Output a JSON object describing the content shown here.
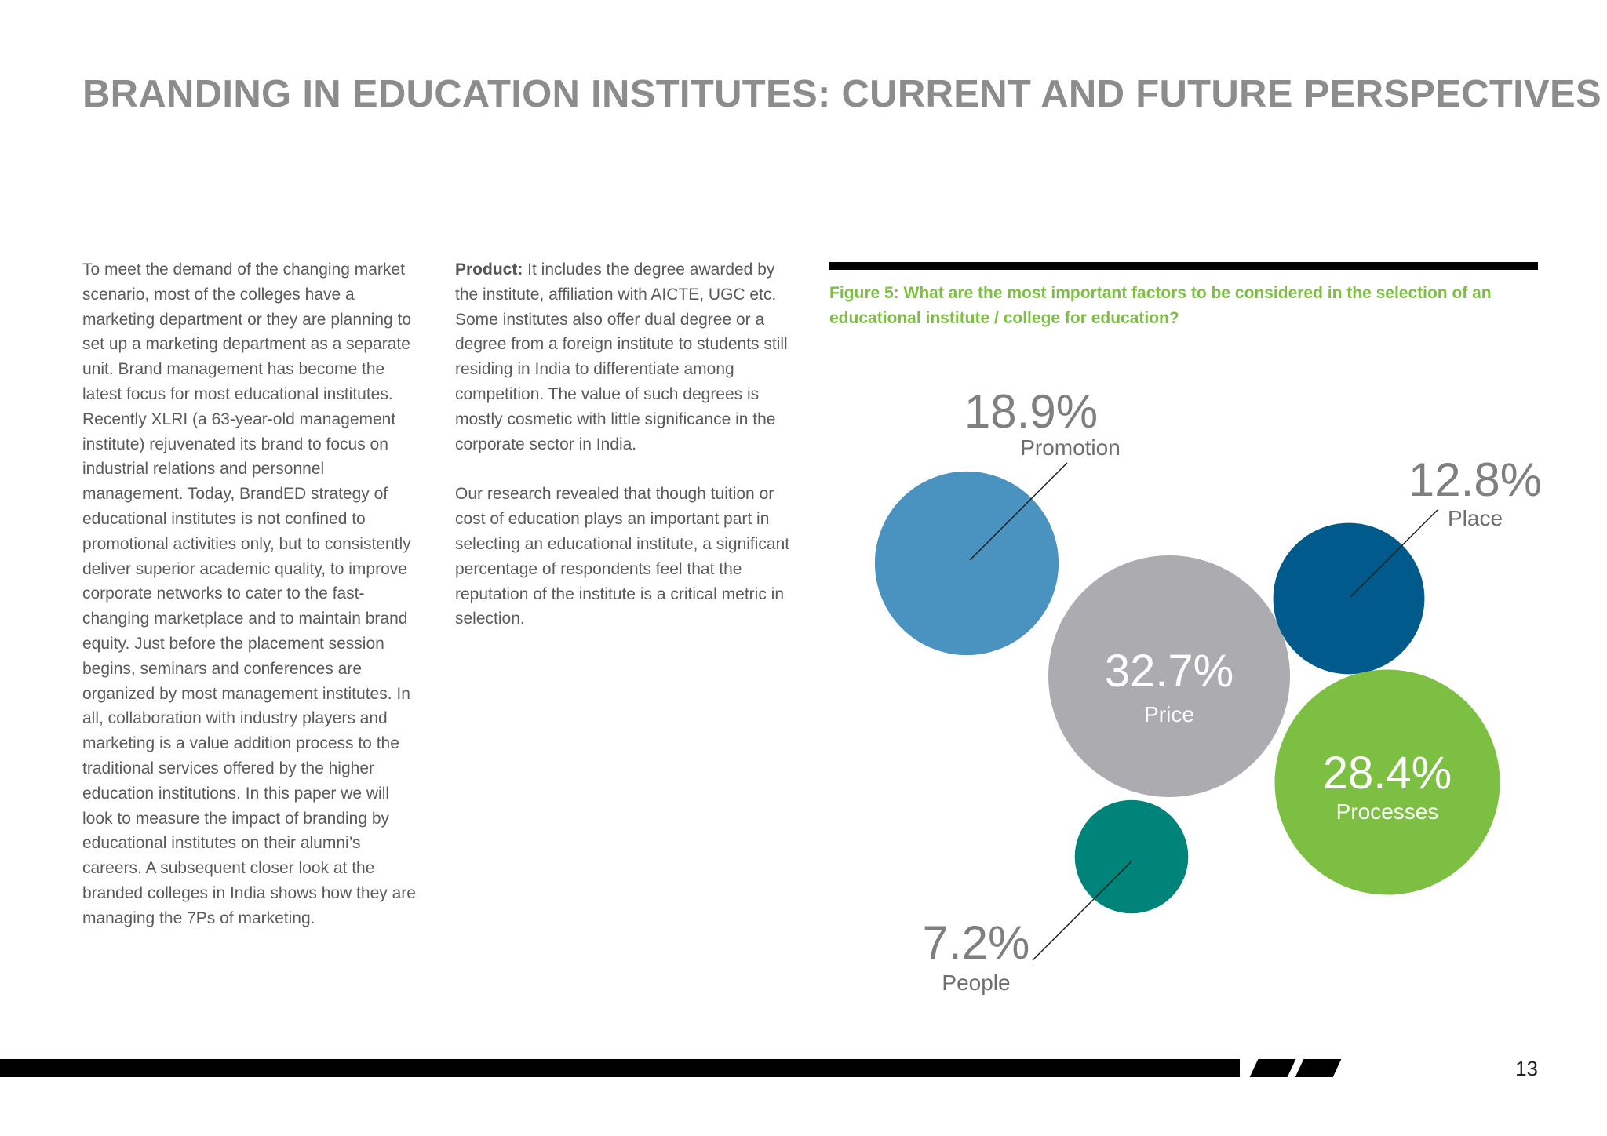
{
  "header": {
    "title": "BRANDING IN EDUCATION INSTITUTES: CURRENT AND FUTURE PERSPECTIVES"
  },
  "column1": {
    "text": "To meet the demand of the changing market scenario, most of the colleges have a marketing department or they are planning to set up a marketing department as a separate unit. Brand management has become the latest focus for most educational institutes. Recently XLRI (a 63-year-old management institute) rejuvenated its brand to focus on industrial relations and personnel management. Today, BrandED strategy of educational institutes is not confined to promotional activities only, but to consistently deliver superior academic quality, to improve corporate networks to cater to the fast-changing marketplace and to maintain brand equity. Just before the placement session begins, seminars and conferences are organized by most management institutes. In all, collaboration with industry players and marketing is a value addition process to the traditional services offered by the higher education institutions. In this paper we will look to measure the impact of branding by educational institutes on their alumni’s careers. A subsequent closer look at the branded colleges in India shows how they are managing the 7Ps of marketing."
  },
  "column2": {
    "product_label": "Product:",
    "product_text": " It includes the degree awarded by the institute, affiliation with AICTE, UGC etc. Some institutes also offer dual degree or a degree from a foreign institute to students still residing in India to differentiate among competition. The value of such degrees is mostly cosmetic with little significance in the corporate sector in India.",
    "research_text": "Our research revealed that though tuition or cost of education plays an important part in selecting an educational institute, a significant percentage of respondents feel that the reputation of the institute is a critical metric in selection."
  },
  "figure": {
    "caption": "Figure 5:  What are the most important factors to be considered in the selection of an educational institute / college for education?"
  },
  "chart_data": {
    "type": "bubble",
    "title": "",
    "series": [
      {
        "category": "Promotion",
        "value": 18.9,
        "label": "18.9%",
        "color": "#4a93c0",
        "label_position": "outside"
      },
      {
        "category": "Price",
        "value": 32.7,
        "label": "32.7%",
        "color": "#acacb0",
        "label_position": "inside"
      },
      {
        "category": "Place",
        "value": 12.8,
        "label": "12.8%",
        "color": "#005a8c",
        "label_position": "outside"
      },
      {
        "category": "Processes",
        "value": 28.4,
        "label": "28.4%",
        "color": "#7cbf43",
        "label_position": "inside"
      },
      {
        "category": "People",
        "value": 7.2,
        "label": "7.2%",
        "color": "#00847a",
        "label_position": "outside"
      }
    ]
  },
  "footer": {
    "page_number": "13"
  }
}
